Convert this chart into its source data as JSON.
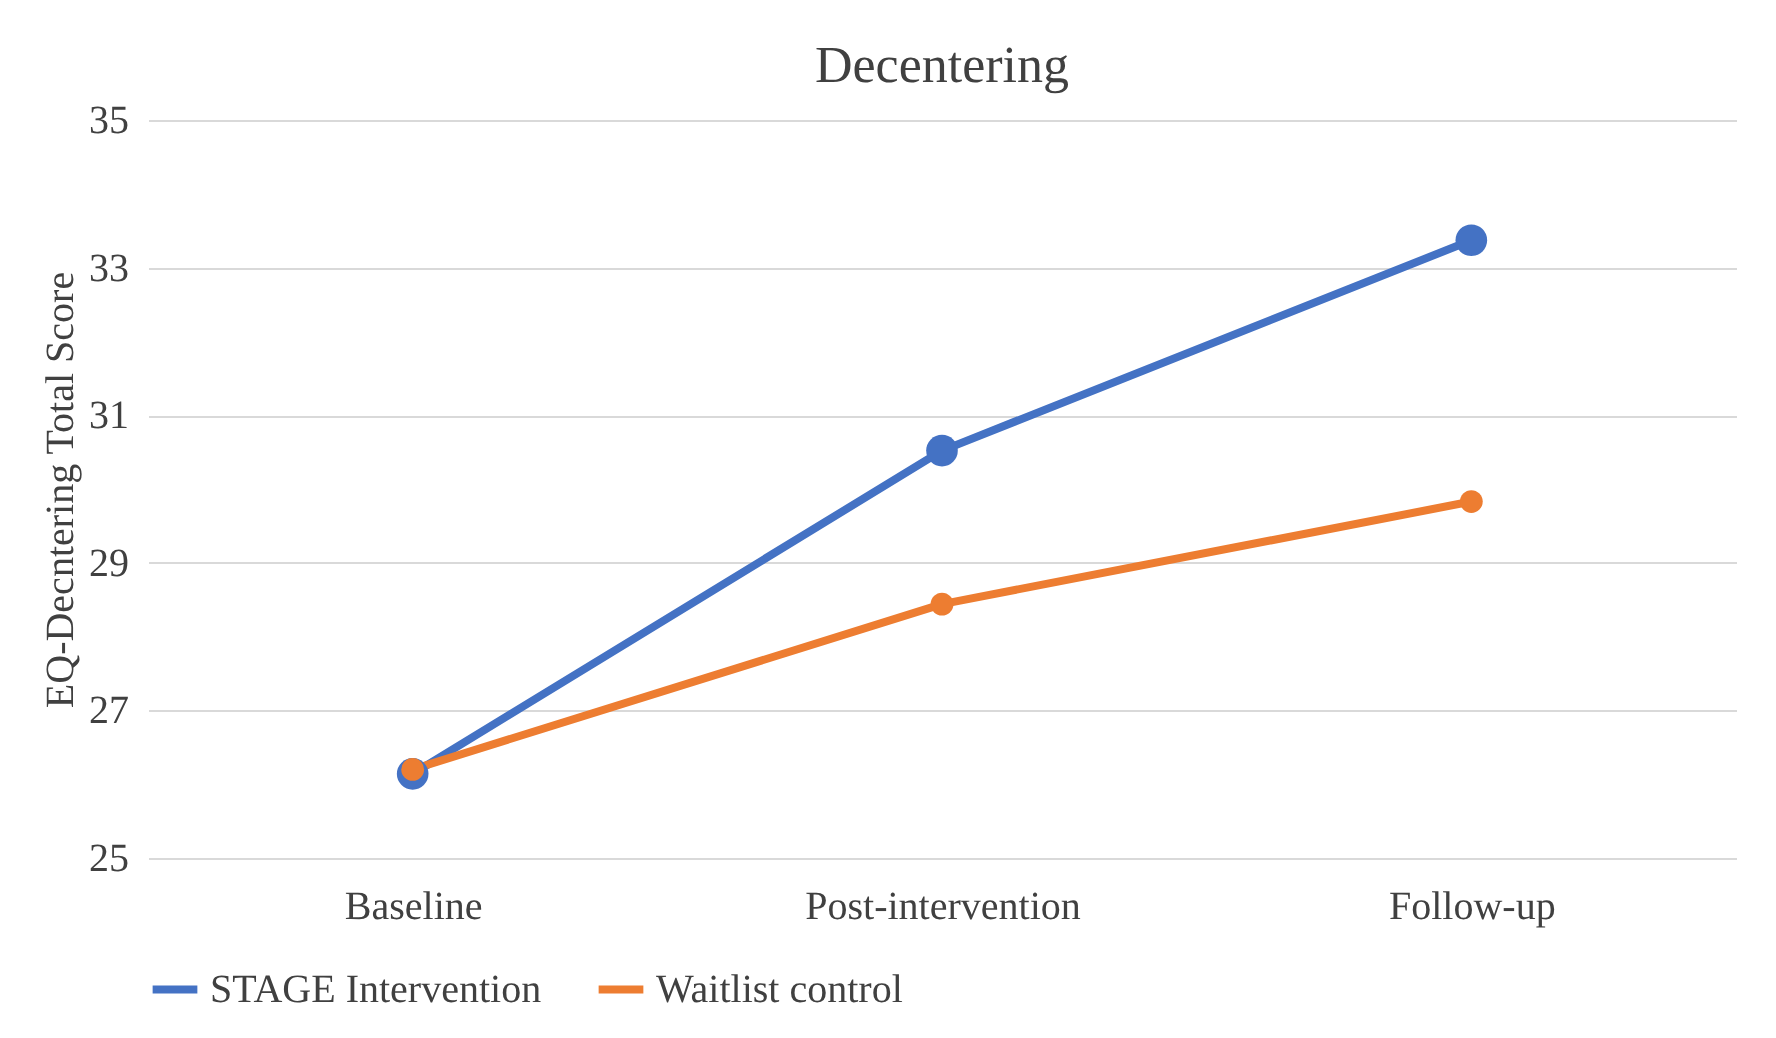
{
  "chart_data": {
    "type": "line",
    "title": "Decentering",
    "ylabel": "EQ-Decntering Total Score",
    "categories": [
      "Baseline",
      "Post-intervention",
      "Follow-up"
    ],
    "series": [
      {
        "name": "STAGE Intervention",
        "color": "#4472c4",
        "values": [
          26.14,
          30.52,
          33.37
        ]
      },
      {
        "name": "Waitlist control",
        "color": "#ed7d31",
        "values": [
          26.2,
          28.44,
          29.83
        ]
      }
    ],
    "ylim": [
      25,
      35
    ],
    "yticks": [
      25,
      27,
      29,
      31,
      33,
      35
    ],
    "grid": "y",
    "legend": "bottom",
    "marker": "circle",
    "line_style": "solid"
  }
}
